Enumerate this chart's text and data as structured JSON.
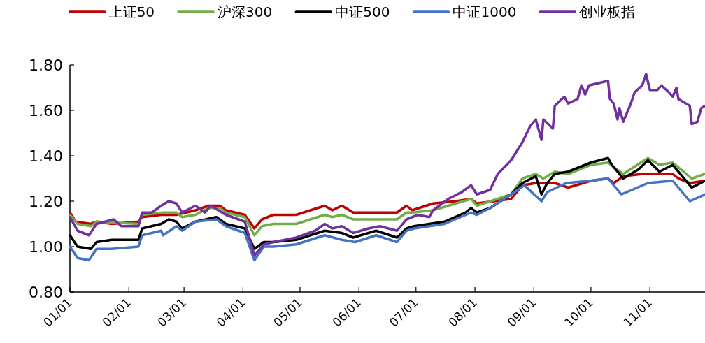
{
  "chart_data": {
    "type": "line",
    "legend": "top",
    "line_style": "solid",
    "marker": "none",
    "xlim": [
      "--01-01",
      "--11-30"
    ],
    "xticks": [
      {
        "value": "--01-01",
        "label": "01/01"
      },
      {
        "value": "--02-01",
        "label": "02/01"
      },
      {
        "value": "--03-01",
        "label": "03/01"
      },
      {
        "value": "--04-01",
        "label": "04/01"
      },
      {
        "value": "--05-01",
        "label": "05/01"
      },
      {
        "value": "--06-01",
        "label": "06/01"
      },
      {
        "value": "--07-01",
        "label": "07/01"
      },
      {
        "value": "--08-01",
        "label": "08/01"
      },
      {
        "value": "--09-01",
        "label": "09/01"
      },
      {
        "value": "--10-01",
        "label": "10/01"
      },
      {
        "value": "--11-01",
        "label": "11/01"
      }
    ],
    "ylim": [
      0.8,
      1.8
    ],
    "yticks": [
      {
        "value": 0.8,
        "label": "0.80"
      },
      {
        "value": 1.0,
        "label": "1.00"
      },
      {
        "value": 1.2,
        "label": "1.20"
      },
      {
        "value": 1.4,
        "label": "1.40"
      },
      {
        "value": 1.6,
        "label": "1.60"
      },
      {
        "value": 1.8,
        "label": "1.80"
      }
    ],
    "series": [
      {
        "name": "上证50",
        "color": "#c00000",
        "x": [
          "--01-01",
          "--01-04",
          "--01-12",
          "--01-15",
          "--01-23",
          "--02-06",
          "--02-08",
          "--02-18",
          "--02-26",
          "--03-07",
          "--03-14",
          "--03-20",
          "--03-23",
          "--04-02",
          "--04-07",
          "--04-11",
          "--04-17",
          "--04-29",
          "--05-14",
          "--05-18",
          "--05-23",
          "--05-29",
          "--06-21",
          "--06-26",
          "--06-29",
          "--07-10",
          "--07-22",
          "--07-30",
          "--08-02",
          "--08-20",
          "--08-26",
          "--09-02",
          "--09-12",
          "--09-19",
          "--10-01",
          "--10-10",
          "--10-13",
          "--10-18",
          "--10-28",
          "--11-13",
          "--11-16",
          "--11-22",
          "--11-30"
        ],
        "values": [
          1.15,
          1.11,
          1.1,
          1.11,
          1.1,
          1.11,
          1.13,
          1.14,
          1.14,
          1.16,
          1.18,
          1.18,
          1.16,
          1.14,
          1.08,
          1.12,
          1.14,
          1.14,
          1.18,
          1.16,
          1.18,
          1.15,
          1.15,
          1.18,
          1.16,
          1.19,
          1.2,
          1.21,
          1.19,
          1.21,
          1.27,
          1.28,
          1.28,
          1.26,
          1.29,
          1.3,
          1.28,
          1.31,
          1.32,
          1.32,
          1.3,
          1.28,
          1.29
        ]
      },
      {
        "name": "沪深300",
        "color": "#70ad47",
        "x": [
          "--01-01",
          "--01-05",
          "--01-12",
          "--01-15",
          "--02-06",
          "--02-08",
          "--02-19",
          "--02-26",
          "--02-29",
          "--03-07",
          "--03-14",
          "--03-20",
          "--03-23",
          "--04-02",
          "--04-07",
          "--04-11",
          "--04-17",
          "--04-29",
          "--05-14",
          "--05-18",
          "--05-23",
          "--05-29",
          "--06-21",
          "--06-26",
          "--06-29",
          "--07-10",
          "--07-22",
          "--07-30",
          "--08-02",
          "--08-20",
          "--08-26",
          "--09-02",
          "--09-06",
          "--09-12",
          "--09-19",
          "--10-01",
          "--10-10",
          "--10-13",
          "--10-18",
          "--10-31",
          "--11-06",
          "--11-13",
          "--11-23",
          "--11-30"
        ],
        "values": [
          1.14,
          1.1,
          1.09,
          1.11,
          1.1,
          1.14,
          1.15,
          1.15,
          1.13,
          1.14,
          1.17,
          1.17,
          1.15,
          1.13,
          1.05,
          1.09,
          1.1,
          1.1,
          1.14,
          1.13,
          1.14,
          1.12,
          1.12,
          1.15,
          1.15,
          1.16,
          1.19,
          1.21,
          1.18,
          1.23,
          1.3,
          1.32,
          1.3,
          1.33,
          1.32,
          1.36,
          1.37,
          1.35,
          1.32,
          1.39,
          1.36,
          1.37,
          1.3,
          1.32
        ]
      },
      {
        "name": "中证500",
        "color": "#000000",
        "x": [
          "--01-01",
          "--01-05",
          "--01-12",
          "--01-15",
          "--01-23",
          "--02-06",
          "--02-08",
          "--02-18",
          "--02-22",
          "--02-26",
          "--02-29",
          "--03-07",
          "--03-18",
          "--03-23",
          "--04-02",
          "--04-07",
          "--04-12",
          "--04-17",
          "--04-29",
          "--05-14",
          "--05-23",
          "--05-29",
          "--06-10",
          "--06-21",
          "--06-26",
          "--06-30",
          "--07-16",
          "--07-27",
          "--07-30",
          "--08-02",
          "--08-09",
          "--08-20",
          "--08-26",
          "--09-02",
          "--09-05",
          "--09-08",
          "--09-12",
          "--09-19",
          "--10-01",
          "--10-10",
          "--10-12",
          "--10-18",
          "--10-26",
          "--10-31",
          "--11-06",
          "--11-13",
          "--11-23",
          "--11-30"
        ],
        "values": [
          1.05,
          1.0,
          0.99,
          1.02,
          1.03,
          1.03,
          1.08,
          1.1,
          1.12,
          1.11,
          1.08,
          1.11,
          1.13,
          1.1,
          1.08,
          0.99,
          1.02,
          1.02,
          1.03,
          1.07,
          1.06,
          1.04,
          1.07,
          1.04,
          1.08,
          1.09,
          1.11,
          1.15,
          1.17,
          1.15,
          1.17,
          1.23,
          1.28,
          1.31,
          1.23,
          1.28,
          1.32,
          1.33,
          1.37,
          1.39,
          1.36,
          1.3,
          1.34,
          1.38,
          1.33,
          1.36,
          1.26,
          1.29
        ]
      },
      {
        "name": "中证1000",
        "color": "#4472c4",
        "x": [
          "--01-01",
          "--01-05",
          "--01-11",
          "--01-15",
          "--01-23",
          "--02-06",
          "--02-08",
          "--02-18",
          "--02-19",
          "--02-26",
          "--02-29",
          "--03-07",
          "--03-18",
          "--03-23",
          "--04-02",
          "--04-07",
          "--04-12",
          "--04-17",
          "--04-29",
          "--05-14",
          "--05-23",
          "--05-30",
          "--06-10",
          "--06-21",
          "--06-26",
          "--06-30",
          "--07-16",
          "--07-30",
          "--08-02",
          "--08-09",
          "--08-20",
          "--08-27",
          "--09-05",
          "--09-08",
          "--09-18",
          "--10-01",
          "--10-10",
          "--10-17",
          "--10-31",
          "--11-13",
          "--11-22",
          "--11-30"
        ],
        "values": [
          1.0,
          0.95,
          0.94,
          0.99,
          0.99,
          1.0,
          1.05,
          1.07,
          1.05,
          1.09,
          1.07,
          1.11,
          1.12,
          1.09,
          1.06,
          0.94,
          1.0,
          1.0,
          1.01,
          1.05,
          1.03,
          1.02,
          1.05,
          1.02,
          1.07,
          1.08,
          1.1,
          1.15,
          1.14,
          1.17,
          1.23,
          1.27,
          1.2,
          1.24,
          1.28,
          1.29,
          1.3,
          1.23,
          1.28,
          1.29,
          1.2,
          1.23
        ]
      },
      {
        "name": "创业板指",
        "color": "#7030a0",
        "x": [
          "--01-01",
          "--01-05",
          "--01-11",
          "--01-15",
          "--01-24",
          "--01-28",
          "--02-06",
          "--02-08",
          "--02-13",
          "--02-18",
          "--02-22",
          "--02-26",
          "--02-29",
          "--03-07",
          "--03-12",
          "--03-15",
          "--03-23",
          "--04-02",
          "--04-07",
          "--04-12",
          "--04-17",
          "--04-29",
          "--05-09",
          "--05-14",
          "--05-18",
          "--05-23",
          "--05-29",
          "--06-06",
          "--06-12",
          "--06-21",
          "--06-26",
          "--07-02",
          "--07-08",
          "--07-10",
          "--07-18",
          "--07-25",
          "--07-30",
          "--08-02",
          "--08-09",
          "--08-13",
          "--08-20",
          "--08-23",
          "--08-26",
          "--08-30",
          "--09-02",
          "--09-05",
          "--09-06",
          "--09-11",
          "--09-12",
          "--09-17",
          "--09-19",
          "--09-24",
          "--09-26",
          "--09-28",
          "--09-30",
          "--10-10",
          "--10-11",
          "--10-13",
          "--10-15",
          "--10-16",
          "--10-18",
          "--10-22",
          "--10-24",
          "--10-28",
          "--10-30",
          "--11-01",
          "--11-05",
          "--11-07",
          "--11-11",
          "--11-13",
          "--11-15",
          "--11-16",
          "--11-22",
          "--11-23",
          "--11-26",
          "--11-28",
          "--11-30"
        ],
        "values": [
          1.13,
          1.07,
          1.05,
          1.1,
          1.12,
          1.09,
          1.09,
          1.15,
          1.15,
          1.18,
          1.2,
          1.19,
          1.15,
          1.18,
          1.15,
          1.18,
          1.14,
          1.11,
          0.96,
          1.01,
          1.02,
          1.04,
          1.07,
          1.1,
          1.08,
          1.09,
          1.06,
          1.08,
          1.09,
          1.07,
          1.12,
          1.14,
          1.13,
          1.16,
          1.21,
          1.24,
          1.27,
          1.23,
          1.25,
          1.32,
          1.38,
          1.42,
          1.46,
          1.53,
          1.56,
          1.47,
          1.56,
          1.52,
          1.62,
          1.66,
          1.63,
          1.65,
          1.71,
          1.67,
          1.71,
          1.73,
          1.65,
          1.63,
          1.56,
          1.61,
          1.55,
          1.63,
          1.68,
          1.71,
          1.76,
          1.69,
          1.69,
          1.71,
          1.68,
          1.66,
          1.7,
          1.65,
          1.62,
          1.54,
          1.55,
          1.61,
          1.62
        ]
      }
    ]
  }
}
